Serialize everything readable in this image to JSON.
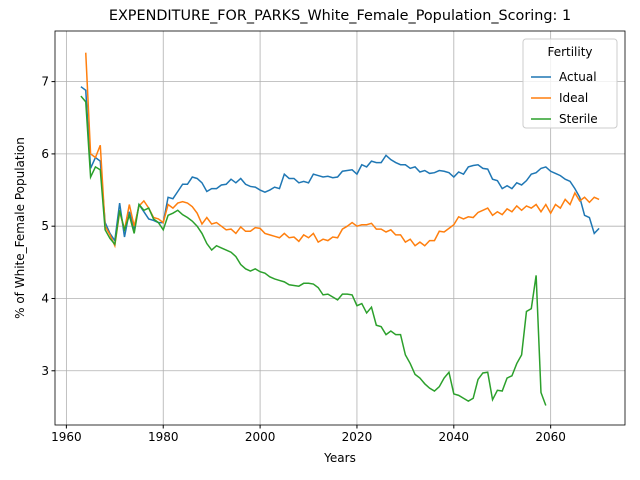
{
  "chart_data": {
    "type": "line",
    "title": "EXPENDITURE_FOR_PARKS_White_Female_Population_Scoring: 1",
    "xlabel": "Years",
    "ylabel": "% of White_Female Population",
    "legend_title": "Fertility",
    "legend": "upper right",
    "grid": true,
    "xlim": [
      1957.65,
      2075.35
    ],
    "ylim": [
      2.25,
      7.7
    ],
    "xticks": [
      1960,
      1980,
      2000,
      2020,
      2040,
      2060
    ],
    "yticks": [
      3,
      4,
      5,
      6,
      7
    ],
    "x": [
      1963,
      1964,
      1965,
      1966,
      1967,
      1968,
      1969,
      1970,
      1971,
      1972,
      1973,
      1974,
      1975,
      1976,
      1977,
      1978,
      1979,
      1980,
      1981,
      1982,
      1983,
      1984,
      1985,
      1986,
      1987,
      1988,
      1989,
      1990,
      1991,
      1992,
      1993,
      1994,
      1995,
      1996,
      1997,
      1998,
      1999,
      2000,
      2001,
      2002,
      2003,
      2004,
      2005,
      2006,
      2007,
      2008,
      2009,
      2010,
      2011,
      2012,
      2013,
      2014,
      2015,
      2016,
      2017,
      2018,
      2019,
      2020,
      2021,
      2022,
      2023,
      2024,
      2025,
      2026,
      2027,
      2028,
      2029,
      2030,
      2031,
      2032,
      2033,
      2034,
      2035,
      2036,
      2037,
      2038,
      2039,
      2040,
      2041,
      2042,
      2043,
      2044,
      2045,
      2046,
      2047,
      2048,
      2049,
      2050,
      2051,
      2052,
      2053,
      2054,
      2055,
      2056,
      2057,
      2058,
      2059,
      2060,
      2061,
      2062,
      2063,
      2064,
      2065,
      2066,
      2067,
      2068,
      2069,
      2070
    ],
    "series": [
      {
        "name": "Actual",
        "color": "#1f77b4",
        "values": [
          6.93,
          6.88,
          5.8,
          5.95,
          5.9,
          5.05,
          4.9,
          4.8,
          5.32,
          4.85,
          5.2,
          4.95,
          5.3,
          5.2,
          5.1,
          5.08,
          5.05,
          5.05,
          5.4,
          5.38,
          5.48,
          5.58,
          5.58,
          5.68,
          5.66,
          5.6,
          5.48,
          5.52,
          5.52,
          5.57,
          5.58,
          5.65,
          5.6,
          5.66,
          5.58,
          5.55,
          5.54,
          5.5,
          5.47,
          5.5,
          5.54,
          5.52,
          5.72,
          5.66,
          5.66,
          5.6,
          5.62,
          5.6,
          5.72,
          5.7,
          5.68,
          5.69,
          5.67,
          5.68,
          5.76,
          5.77,
          5.78,
          5.72,
          5.85,
          5.82,
          5.9,
          5.88,
          5.88,
          5.98,
          5.92,
          5.88,
          5.85,
          5.85,
          5.8,
          5.82,
          5.75,
          5.77,
          5.73,
          5.74,
          5.77,
          5.76,
          5.74,
          5.68,
          5.75,
          5.72,
          5.82,
          5.84,
          5.85,
          5.8,
          5.79,
          5.65,
          5.63,
          5.52,
          5.56,
          5.52,
          5.6,
          5.57,
          5.63,
          5.72,
          5.74,
          5.8,
          5.82,
          5.76,
          5.73,
          5.7,
          5.65,
          5.62,
          5.52,
          5.4,
          5.15,
          5.12,
          4.9,
          4.97
        ]
      },
      {
        "name": "Ideal",
        "color": "#ff7f0e",
        "values": [
          null,
          7.4,
          6.0,
          5.95,
          6.12,
          5.0,
          4.88,
          4.73,
          5.2,
          4.95,
          5.3,
          5.0,
          5.28,
          5.35,
          5.25,
          5.12,
          5.1,
          5.05,
          5.3,
          5.25,
          5.32,
          5.34,
          5.32,
          5.27,
          5.18,
          5.03,
          5.12,
          5.03,
          5.05,
          5.0,
          4.95,
          4.96,
          4.9,
          4.99,
          4.93,
          4.93,
          4.98,
          4.97,
          4.9,
          4.88,
          4.86,
          4.84,
          4.9,
          4.84,
          4.85,
          4.79,
          4.88,
          4.84,
          4.9,
          4.78,
          4.82,
          4.8,
          4.85,
          4.84,
          4.96,
          5.0,
          5.05,
          5.0,
          5.02,
          5.02,
          5.04,
          4.96,
          4.96,
          4.92,
          4.95,
          4.88,
          4.88,
          4.78,
          4.82,
          4.73,
          4.78,
          4.73,
          4.8,
          4.8,
          4.93,
          4.92,
          4.97,
          5.02,
          5.13,
          5.1,
          5.13,
          5.12,
          5.19,
          5.22,
          5.25,
          5.15,
          5.2,
          5.16,
          5.24,
          5.2,
          5.28,
          5.22,
          5.28,
          5.25,
          5.3,
          5.2,
          5.3,
          5.18,
          5.3,
          5.25,
          5.37,
          5.3,
          5.46,
          5.35,
          5.4,
          5.33,
          5.4,
          5.37
        ]
      },
      {
        "name": "Sterile",
        "color": "#2ca02c",
        "values": [
          6.8,
          6.72,
          5.68,
          5.82,
          5.78,
          4.95,
          4.83,
          4.75,
          5.22,
          4.95,
          5.15,
          4.9,
          5.3,
          5.22,
          5.25,
          5.1,
          5.05,
          4.95,
          5.15,
          5.18,
          5.22,
          5.16,
          5.12,
          5.07,
          5.0,
          4.9,
          4.76,
          4.67,
          4.73,
          4.7,
          4.67,
          4.64,
          4.58,
          4.47,
          4.41,
          4.38,
          4.41,
          4.37,
          4.35,
          4.3,
          4.27,
          4.25,
          4.23,
          4.19,
          4.18,
          4.17,
          4.21,
          4.21,
          4.2,
          4.15,
          4.05,
          4.06,
          4.02,
          3.98,
          4.06,
          4.06,
          4.05,
          3.9,
          3.93,
          3.8,
          3.88,
          3.63,
          3.61,
          3.5,
          3.55,
          3.5,
          3.5,
          3.22,
          3.1,
          2.95,
          2.9,
          2.82,
          2.76,
          2.72,
          2.78,
          2.9,
          2.98,
          2.68,
          2.66,
          2.62,
          2.58,
          2.62,
          2.88,
          2.97,
          2.98,
          2.6,
          2.73,
          2.72,
          2.9,
          2.93,
          3.1,
          3.22,
          3.82,
          3.86,
          4.32,
          2.7,
          2.52,
          null,
          null,
          null,
          null,
          null,
          null,
          null,
          null,
          null,
          null,
          null
        ]
      }
    ]
  }
}
